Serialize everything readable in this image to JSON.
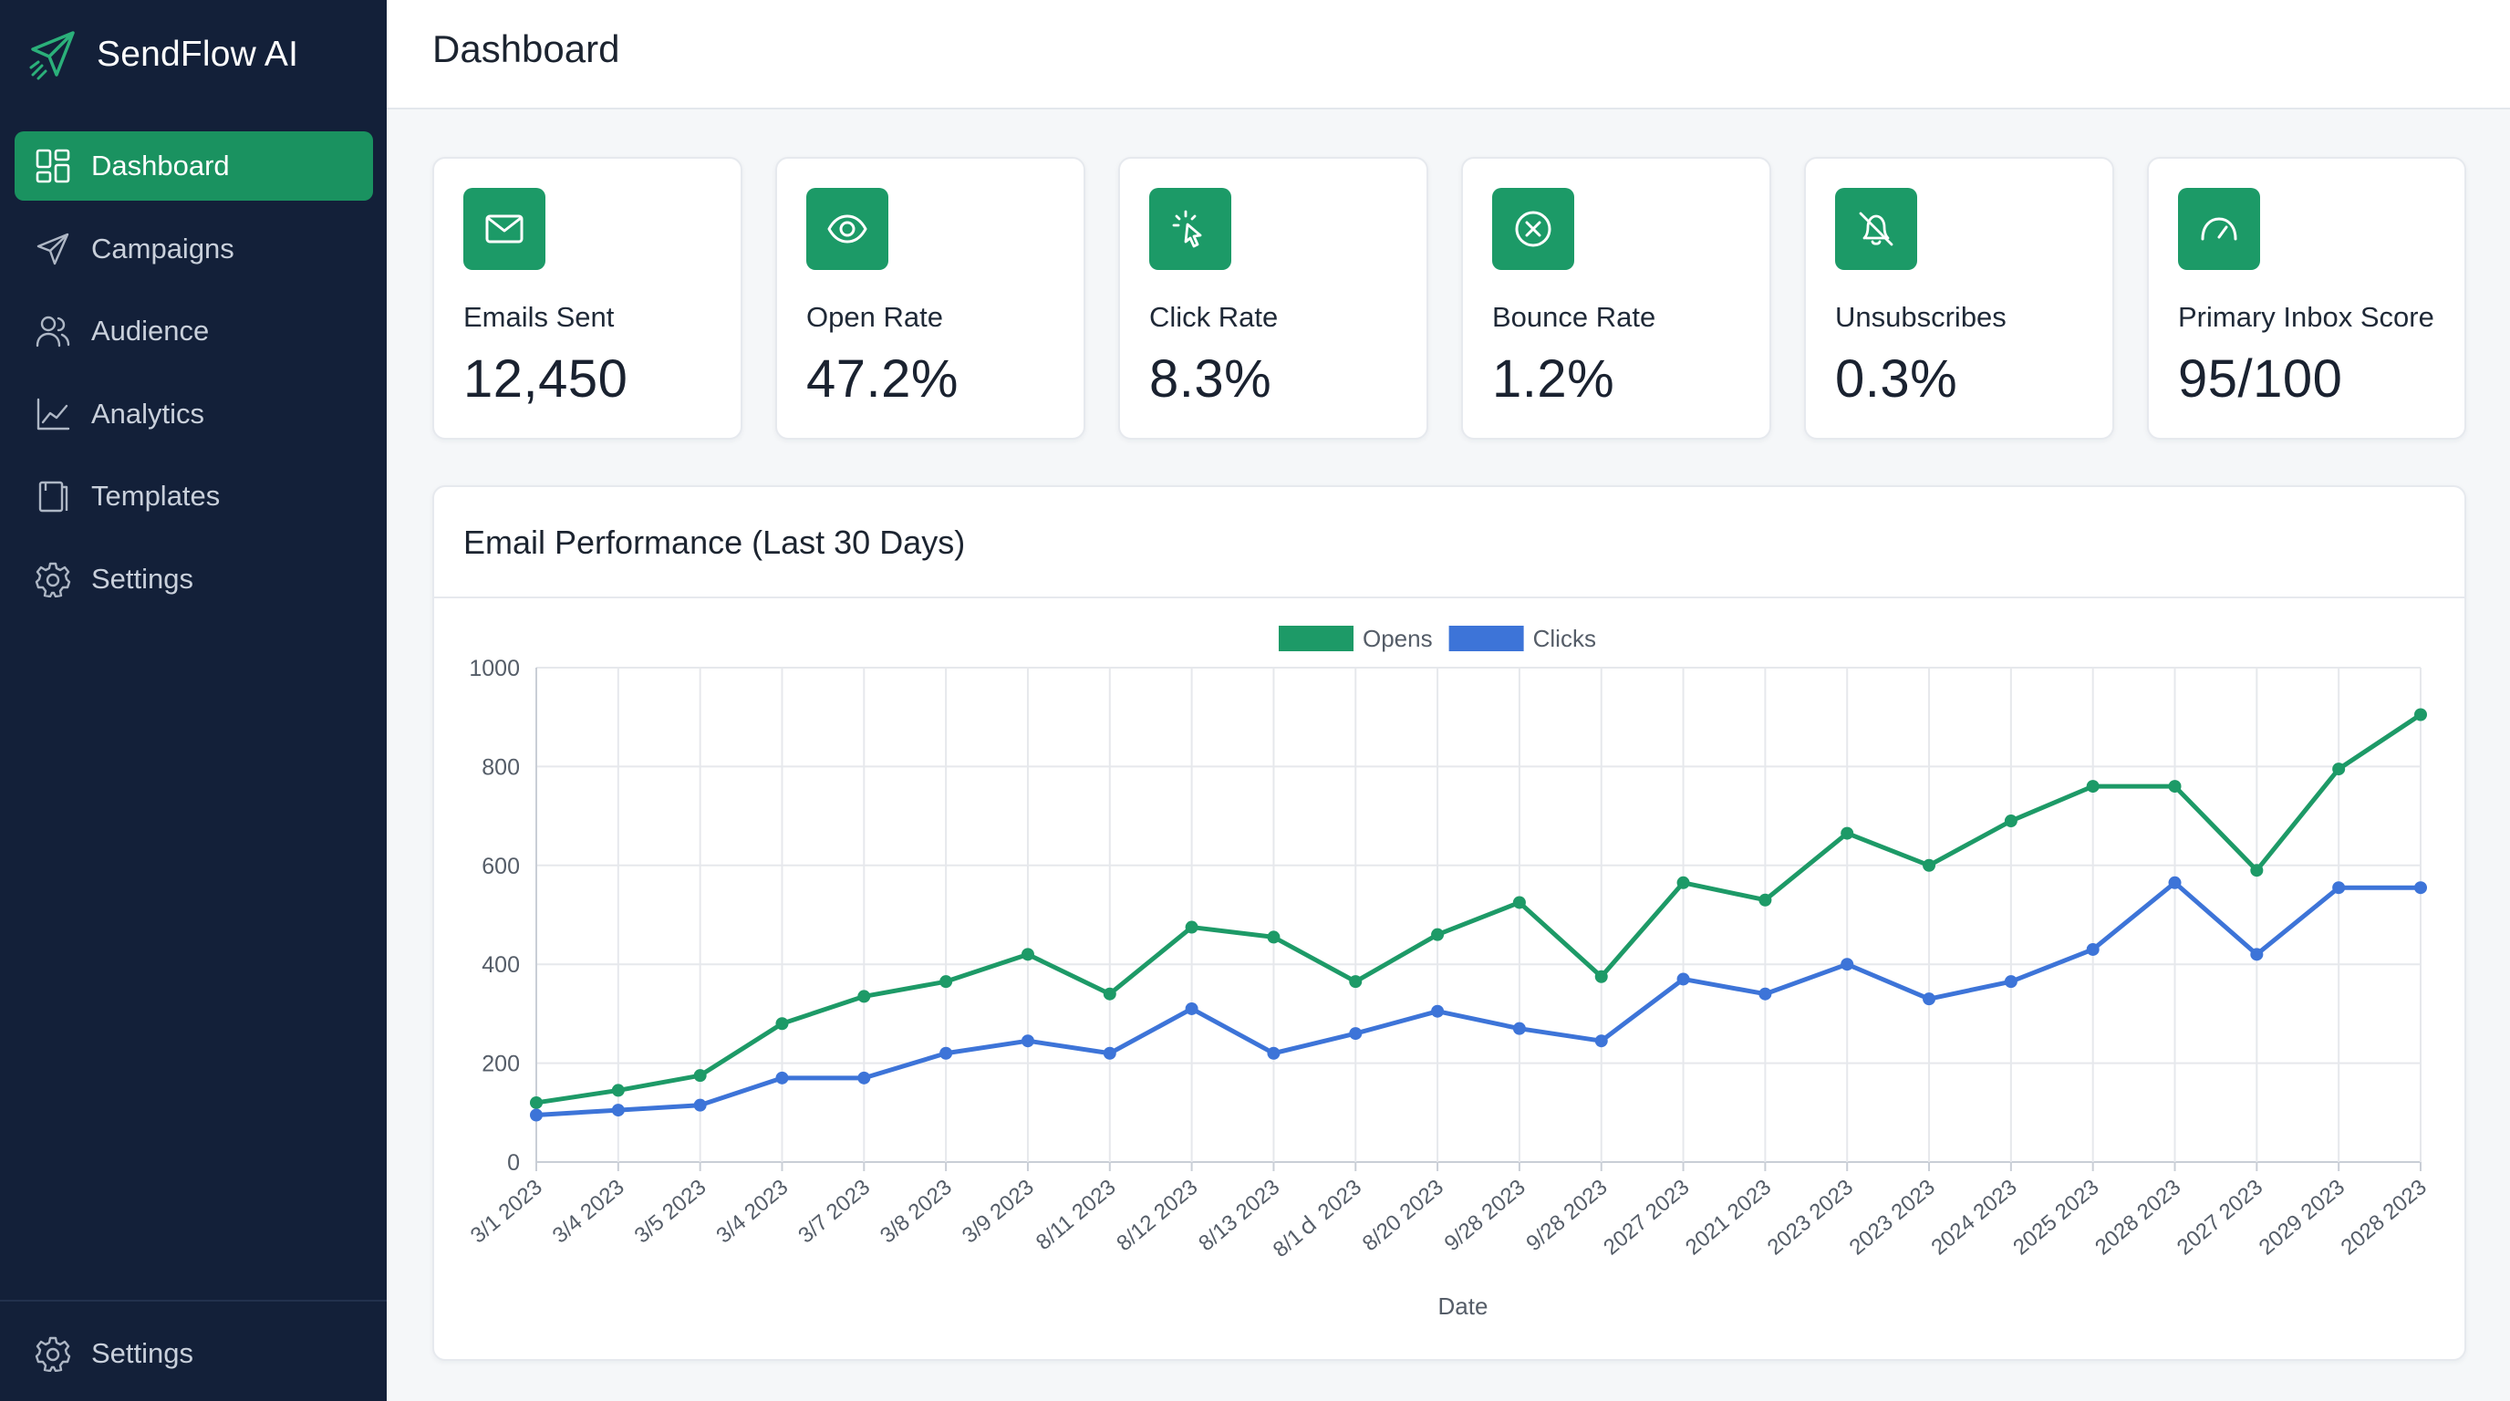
{
  "app": {
    "name": "SendFlow AI",
    "page_title": "Dashboard"
  },
  "sidebar": {
    "items": [
      {
        "label": "Dashboard",
        "icon": "dashboard-icon",
        "active": true
      },
      {
        "label": "Campaigns",
        "icon": "paper-plane-icon",
        "active": false
      },
      {
        "label": "Audience",
        "icon": "users-icon",
        "active": false
      },
      {
        "label": "Analytics",
        "icon": "line-chart-icon",
        "active": false
      },
      {
        "label": "Templates",
        "icon": "document-icon",
        "active": false
      },
      {
        "label": "Settings",
        "icon": "gear-icon",
        "active": false
      }
    ],
    "bottom_item": {
      "label": "Settings",
      "icon": "gear-icon"
    }
  },
  "stats": [
    {
      "label": "Emails Sent",
      "value": "12,450",
      "icon": "envelope-icon"
    },
    {
      "label": "Open Rate",
      "value": "47.2%",
      "icon": "eye-icon"
    },
    {
      "label": "Click Rate",
      "value": "8.3%",
      "icon": "cursor-click-icon"
    },
    {
      "label": "Bounce Rate",
      "value": "1.2%",
      "icon": "x-circle-icon"
    },
    {
      "label": "Unsubscribes",
      "value": "0.3%",
      "icon": "bell-off-icon"
    },
    {
      "label": "Primary Inbox Score",
      "value": "95/100",
      "icon": "gauge-icon"
    }
  ],
  "colors": {
    "accent": "#1a9260",
    "sidebar_bg": "#132039",
    "opens": "#1d9a67",
    "clicks": "#3d74d8"
  },
  "chart_data": {
    "type": "line",
    "title": "Email Performance (Last 30 Days)",
    "xlabel": "Date",
    "ylabel": "",
    "ylim": [
      0,
      1000
    ],
    "yticks": [
      0,
      200,
      400,
      600,
      800,
      1000
    ],
    "grid": true,
    "legend": "top-center",
    "categories": [
      "3/1 2023",
      "3/4 2023",
      "3/5 2023",
      "3/4 2023",
      "3/7 2023",
      "3/8 2023",
      "3/9 2023",
      "8/11 2023",
      "8/12 2023",
      "8/13 2023",
      "8/1ｄ 2023",
      "8/20 2023",
      "9/28 2023",
      "9/28 2023",
      "2027 2023",
      "2021 2023",
      "2023 2023",
      "2023 2023",
      "2024 2023",
      "2025 2023",
      "2028 2023",
      "2027 2023",
      "2029 2023",
      "2028 2023"
    ],
    "series": [
      {
        "name": "Opens",
        "color": "#1d9a67",
        "values": [
          120,
          145,
          175,
          280,
          335,
          365,
          420,
          340,
          475,
          455,
          365,
          460,
          525,
          375,
          565,
          530,
          665,
          600,
          690,
          760,
          760,
          590,
          795,
          905
        ]
      },
      {
        "name": "Clicks",
        "color": "#3d74d8",
        "values": [
          95,
          105,
          115,
          170,
          170,
          220,
          245,
          220,
          310,
          220,
          260,
          305,
          270,
          245,
          370,
          340,
          400,
          330,
          365,
          430,
          565,
          420,
          555,
          555
        ]
      }
    ]
  }
}
